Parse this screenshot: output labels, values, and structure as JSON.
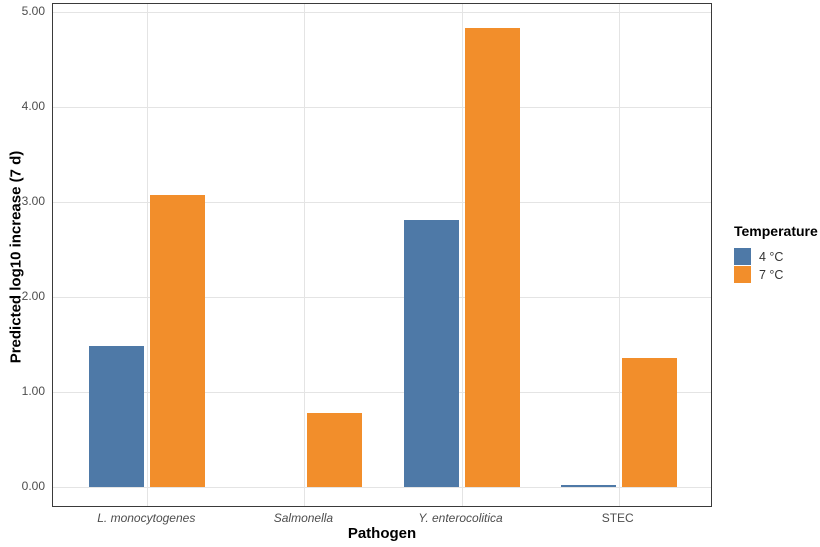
{
  "chart_data": {
    "type": "bar",
    "title": "",
    "xlabel": "Pathogen",
    "ylabel": "Predicted log10 increase (7 d)",
    "categories": [
      "L. monocytogenes",
      "Salmonella",
      "Y. enterocolitica",
      "STEC"
    ],
    "categories_italic": [
      true,
      true,
      true,
      false
    ],
    "series": [
      {
        "name": "4 °C",
        "color": "#4E79A7",
        "values": [
          1.48,
          0.0,
          2.81,
          0.02
        ]
      },
      {
        "name": "7 °C",
        "color": "#F28E2B",
        "values": [
          3.07,
          0.78,
          4.83,
          1.36
        ]
      }
    ],
    "legend": {
      "title": "Temperature",
      "position": "right"
    },
    "y_ticks": [
      0,
      1,
      2,
      3,
      4,
      5
    ],
    "y_tick_labels": [
      "0.00",
      "1.00",
      "2.00",
      "3.00",
      "4.00",
      "5.00"
    ],
    "ylim": [
      0,
      5
    ],
    "grid": "major-both"
  },
  "colors": {
    "background": "#FFFFFF",
    "panel_border": "#3A3A3A",
    "gridline": "#E4E4E4",
    "tick_label": "#4D4D4D",
    "axis_title": "#000000",
    "legend_label": "#333333",
    "series_4c": "#4E79A7",
    "series_7c": "#F28E2B"
  }
}
